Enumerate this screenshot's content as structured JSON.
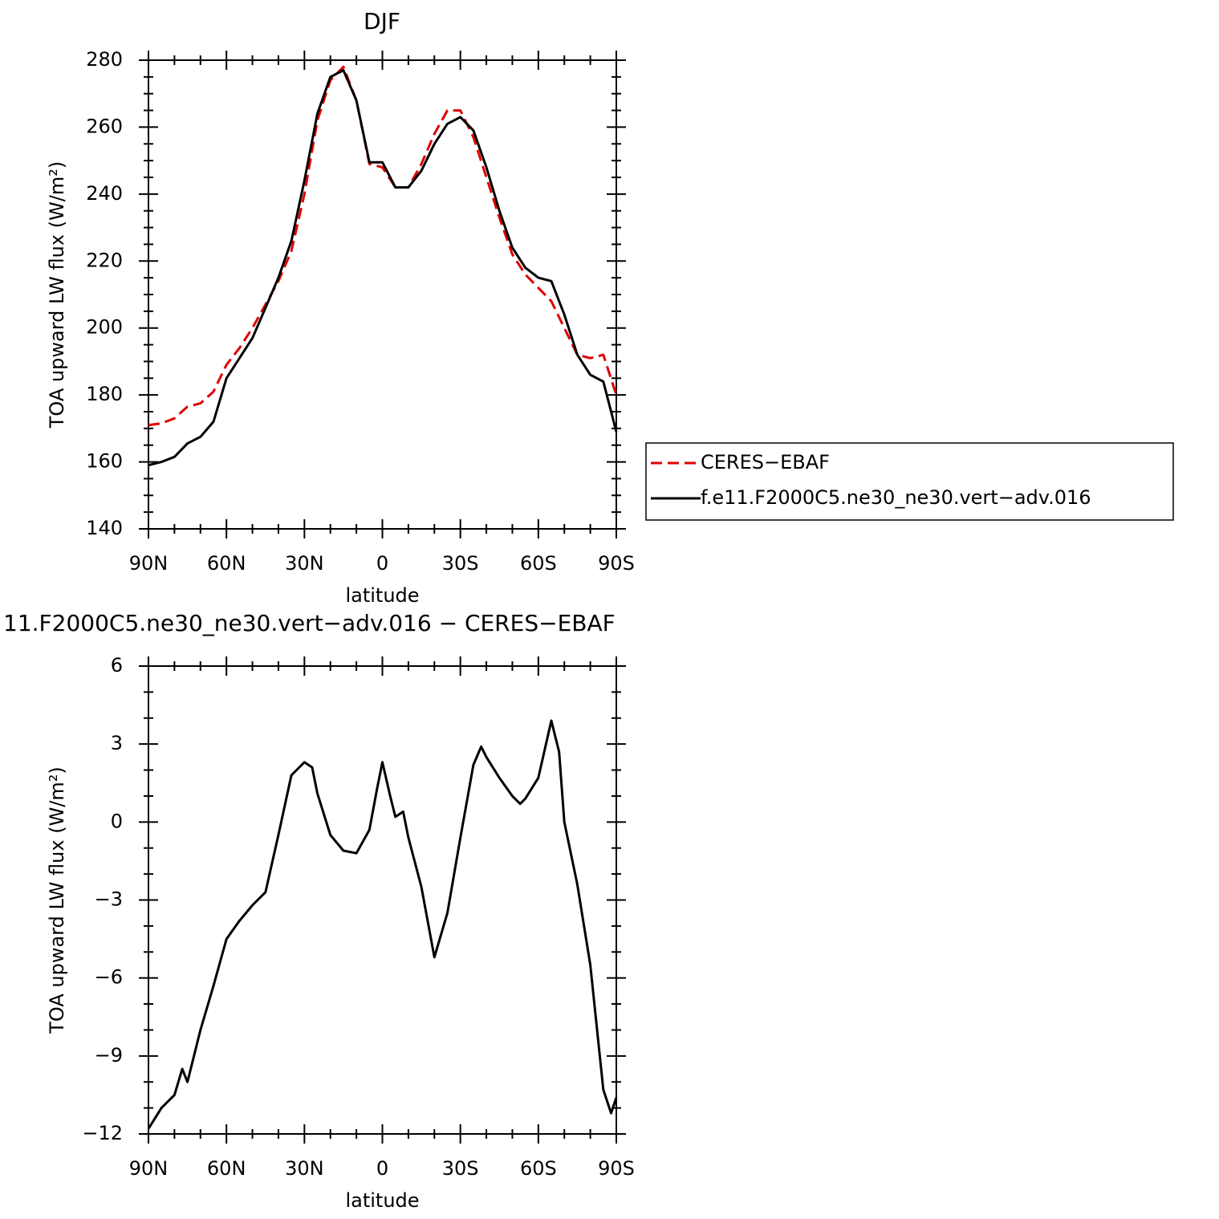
{
  "chart_data": [
    {
      "type": "line",
      "title": "DJF",
      "xlabel": "latitude",
      "ylabel": "TOA upward LW flux (W/m²)",
      "x": [
        90,
        85,
        80,
        75,
        70,
        65,
        60,
        55,
        50,
        45,
        40,
        35,
        30,
        25,
        20,
        15,
        10,
        5,
        0,
        -5,
        -10,
        -15,
        -20,
        -25,
        -30,
        -35,
        -40,
        -45,
        -50,
        -55,
        -60,
        -65,
        -70,
        -75,
        -80,
        -85,
        -90
      ],
      "series": [
        {
          "name": "CERES−EBAF",
          "color": "#e00000",
          "dash": true,
          "values": [
            171,
            171.5,
            173,
            176.5,
            177.5,
            181,
            189,
            194,
            200,
            207,
            214,
            223,
            240,
            262,
            274,
            278,
            268,
            249,
            248,
            242,
            242,
            249,
            258,
            265,
            265,
            257,
            245,
            233,
            222,
            216,
            212,
            208,
            200,
            192,
            191,
            192,
            180
          ]
        },
        {
          "name": "f.e11.F2000C5.ne30_ne30.vert−adv.016",
          "color": "#000000",
          "dash": false,
          "values": [
            159,
            160,
            161.5,
            165.5,
            167.5,
            172,
            185,
            191,
            197,
            206,
            215,
            226,
            244,
            264,
            275,
            277,
            268,
            249.5,
            249.5,
            242,
            242,
            247,
            255,
            261,
            263,
            259,
            248,
            235,
            224,
            218,
            215,
            214,
            204,
            192,
            186,
            184,
            169
          ]
        }
      ],
      "xlim": [
        90,
        -90
      ],
      "xticks": [
        {
          "value": 90,
          "label": "90N"
        },
        {
          "value": 60,
          "label": "60N"
        },
        {
          "value": 30,
          "label": "30N"
        },
        0,
        {
          "value": -30,
          "label": "30S"
        },
        {
          "value": -60,
          "label": "60S"
        },
        {
          "value": -90,
          "label": "90S"
        }
      ],
      "xminorticks": [
        80,
        70,
        50,
        40,
        20,
        10,
        -10,
        -20,
        -40,
        -50,
        -70,
        -80
      ],
      "ylim": [
        140,
        280
      ],
      "yticks": [
        140,
        160,
        180,
        200,
        220,
        240,
        260,
        280
      ],
      "yminorticks": [
        145,
        150,
        155,
        165,
        170,
        175,
        185,
        190,
        195,
        205,
        210,
        215,
        225,
        230,
        235,
        245,
        250,
        255,
        265,
        270,
        275
      ],
      "legend": "right"
    },
    {
      "type": "line",
      "title": "11.F2000C5.ne30_ne30.vert−adv.016 − CERES−EBAF",
      "xlabel": "latitude",
      "ylabel": "TOA upward LW flux (W/m²)",
      "x": [
        90,
        85,
        80,
        77,
        75,
        70,
        65,
        60,
        55,
        50,
        45,
        40,
        35,
        30,
        27,
        25,
        20,
        15,
        10,
        5,
        2,
        0,
        -3,
        -5,
        -8,
        -10,
        -15,
        -20,
        -25,
        -30,
        -35,
        -38,
        -40,
        -45,
        -50,
        -53,
        -55,
        -60,
        -65,
        -68,
        -70,
        -75,
        -80,
        -85,
        -88,
        -90
      ],
      "series": [
        {
          "color": "#000000",
          "dash": false,
          "values": [
            -11.8,
            -11,
            -10.5,
            -9.5,
            -10,
            -8,
            -6.3,
            -4.5,
            -3.8,
            -3.2,
            -2.7,
            -0.5,
            1.8,
            2.3,
            2.1,
            1.1,
            -0.5,
            -1.1,
            -1.2,
            -0.3,
            1.3,
            2.3,
            1.0,
            0.2,
            0.4,
            -0.6,
            -2.5,
            -5.2,
            -3.5,
            -0.6,
            2.2,
            2.9,
            2.5,
            1.7,
            1.0,
            0.7,
            0.9,
            1.7,
            3.9,
            2.7,
            0.0,
            -2.4,
            -5.5,
            -10.3,
            -11.2,
            -10.6
          ]
        }
      ],
      "xlim": [
        90,
        -90
      ],
      "xticks": [
        {
          "value": 90,
          "label": "90N"
        },
        {
          "value": 60,
          "label": "60N"
        },
        {
          "value": 30,
          "label": "30N"
        },
        0,
        {
          "value": -30,
          "label": "30S"
        },
        {
          "value": -60,
          "label": "60S"
        },
        {
          "value": -90,
          "label": "90S"
        }
      ],
      "xminorticks": [
        80,
        70,
        50,
        40,
        20,
        10,
        -10,
        -20,
        -40,
        -50,
        -70,
        -80
      ],
      "ylim": [
        -12,
        6
      ],
      "yticks": [
        {
          "value": -12,
          "label": "−12"
        },
        {
          "value": -9,
          "label": "−9"
        },
        {
          "value": -6,
          "label": "−6"
        },
        {
          "value": -3,
          "label": "−3"
        },
        0,
        3,
        6
      ],
      "yminorticks": [
        -11,
        -10,
        -8,
        -7,
        -5,
        -4,
        -2,
        -1,
        1,
        2,
        4,
        5
      ]
    }
  ]
}
